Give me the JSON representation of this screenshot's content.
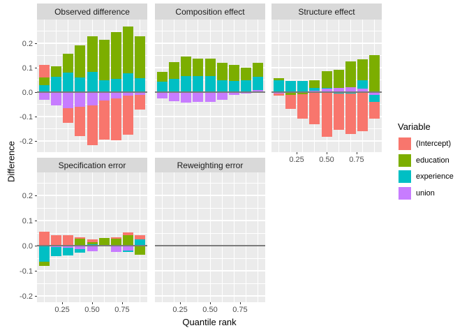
{
  "chart_data": {
    "type": "bar",
    "stacked": true,
    "title": "",
    "xlabel": "Quantile rank",
    "ylabel": "Difference",
    "x": [
      0.1,
      0.2,
      0.3,
      0.4,
      0.5,
      0.6,
      0.7,
      0.8,
      0.9
    ],
    "bar_width": 0.09,
    "xlim": [
      0.04,
      0.96
    ],
    "ylim": [
      -0.245,
      0.295
    ],
    "x_ticks": [
      0.25,
      0.5,
      0.75
    ],
    "x_tick_labels": [
      "0.25",
      "0.50",
      "0.75"
    ],
    "y_ticks": [
      0.2,
      0.1,
      0.0,
      -0.1,
      -0.2
    ],
    "y_tick_labels": [
      "0.2",
      "0.1",
      "0.0",
      "-0.1",
      "-0.2"
    ],
    "grid": true,
    "panel_bg": "#ebebeb",
    "strip_bg": "#d9d9d9",
    "gridline_color": "#ffffff",
    "zero_line_color": "#7b7b7b",
    "legend": {
      "title": "Variable",
      "position": "right",
      "entries": [
        {
          "label": "(Intercept)",
          "color": "#F8766D"
        },
        {
          "label": "education",
          "color": "#7CAE00"
        },
        {
          "label": "experience",
          "color": "#00BFC4"
        },
        {
          "label": "union",
          "color": "#C77CFF"
        }
      ]
    },
    "colors": {
      "(Intercept)": "#F8766D",
      "education": "#7CAE00",
      "experience": "#00BFC4",
      "union": "#C77CFF"
    },
    "stack_order": [
      "union",
      "experience",
      "education",
      "(Intercept)"
    ],
    "facets": [
      {
        "title": "Observed difference",
        "row": 0,
        "col": 0,
        "x_axis": false,
        "series": {
          "(Intercept)": [
            0.05,
            0.0,
            -0.062,
            -0.119,
            -0.162,
            -0.161,
            -0.173,
            -0.159,
            -0.061
          ],
          "education": [
            0.033,
            0.045,
            0.076,
            0.131,
            0.147,
            0.165,
            0.191,
            0.19,
            0.173
          ],
          "experience": [
            0.028,
            0.062,
            0.08,
            0.061,
            0.083,
            0.05,
            0.054,
            0.078,
            0.057
          ],
          "union": [
            -0.03,
            -0.055,
            -0.065,
            -0.06,
            -0.055,
            -0.034,
            -0.025,
            -0.015,
            -0.01
          ]
        }
      },
      {
        "title": "Composition effect",
        "row": 0,
        "col": 1,
        "x_axis": false,
        "series": {
          "(Intercept)": [
            0,
            0,
            0,
            0,
            0,
            0,
            0,
            0,
            0
          ],
          "education": [
            0.041,
            0.069,
            0.078,
            0.071,
            0.072,
            0.071,
            0.066,
            0.049,
            0.057
          ],
          "experience": [
            0.042,
            0.054,
            0.067,
            0.067,
            0.066,
            0.05,
            0.045,
            0.05,
            0.054
          ],
          "union": [
            -0.027,
            -0.038,
            -0.044,
            -0.041,
            -0.041,
            -0.031,
            -0.012,
            -0.006,
            0.01
          ]
        }
      },
      {
        "title": "Structure effect",
        "row": 0,
        "col": 2,
        "x_axis": true,
        "series": {
          "(Intercept)": [
            -0.008,
            -0.057,
            -0.1,
            -0.131,
            -0.182,
            -0.15,
            -0.165,
            -0.159,
            -0.067
          ],
          "education": [
            0.006,
            -0.007,
            -0.005,
            0.032,
            0.068,
            0.074,
            0.105,
            0.085,
            0.152
          ],
          "experience": [
            0.05,
            0.047,
            0.047,
            0.013,
            0.002,
            -0.005,
            -0.005,
            0.037,
            -0.029
          ],
          "union": [
            -0.005,
            -0.004,
            -0.003,
            0.005,
            0.015,
            0.018,
            0.021,
            0.013,
            -0.012
          ]
        }
      },
      {
        "title": "Specification error",
        "row": 1,
        "col": 0,
        "x_axis": true,
        "series": {
          "(Intercept)": [
            0.056,
            0.041,
            0.04,
            0.005,
            0.013,
            -0.004,
            0.004,
            0.013,
            0.015
          ],
          "education": [
            -0.015,
            0.0,
            0.003,
            0.027,
            0.007,
            0.03,
            0.028,
            0.041,
            -0.032
          ],
          "experience": [
            -0.063,
            -0.037,
            -0.031,
            -0.012,
            0.006,
            0.0,
            0.0,
            -0.005,
            0.026
          ],
          "union": [
            -0.002,
            -0.006,
            -0.009,
            -0.015,
            -0.022,
            0.0,
            -0.024,
            -0.02,
            -0.004
          ]
        }
      },
      {
        "title": "Reweighting error",
        "row": 1,
        "col": 1,
        "x_axis": true,
        "series": {
          "(Intercept)": [
            0,
            0,
            0,
            0,
            0,
            0,
            0,
            0,
            0
          ],
          "education": [
            0,
            0,
            0,
            0,
            0,
            0,
            0,
            0,
            0
          ],
          "experience": [
            0,
            0,
            0,
            0,
            0,
            0,
            0,
            0,
            0
          ],
          "union": [
            0,
            0,
            0,
            0,
            0,
            0,
            0,
            0,
            0
          ]
        }
      }
    ]
  }
}
